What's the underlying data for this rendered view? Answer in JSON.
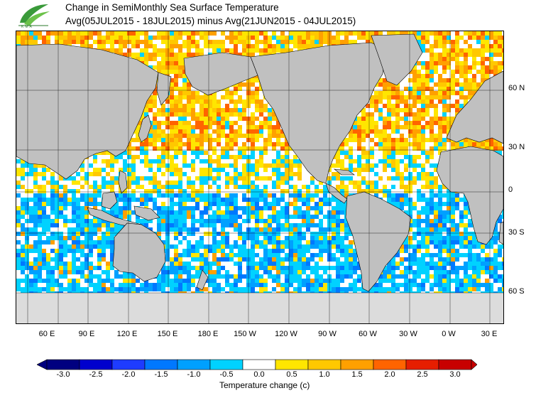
{
  "title_line1": "Change in SemiMonthly Sea Surface Temperature",
  "title_line2": "Avg(05JUL2015 - 18JUL2015) minus Avg(21JUN2015 - 04JUL2015)",
  "logo": {
    "icon": "leaf-logo-icon",
    "text": "KMA"
  },
  "lat_labels": [
    "60 N",
    "30 N",
    "0",
    "30 S",
    "60 S"
  ],
  "lon_labels": [
    "60 E",
    "90 E",
    "120 E",
    "150 E",
    "180 E",
    "150 W",
    "120 W",
    "90 W",
    "60 W",
    "30 W",
    "0 W",
    "30 E"
  ],
  "colorbar": {
    "ticks": [
      "-3.0",
      "-2.5",
      "-2.0",
      "-1.5",
      "-1.0",
      "-0.5",
      "0.0",
      "0.5",
      "1.0",
      "1.5",
      "2.0",
      "2.5",
      "3.0"
    ],
    "colors": [
      "#000080",
      "#0000cd",
      "#1e3cff",
      "#0078ff",
      "#00a0ff",
      "#00d2ff",
      "#ffffff",
      "#ffe600",
      "#ffc800",
      "#ffa000",
      "#ff6400",
      "#e61e00",
      "#c80000"
    ],
    "label": "Temperature change  (c)"
  },
  "colors": {
    "land": "#c0c0c0",
    "ice": "#dcdcdc",
    "frame": "#000000"
  }
}
